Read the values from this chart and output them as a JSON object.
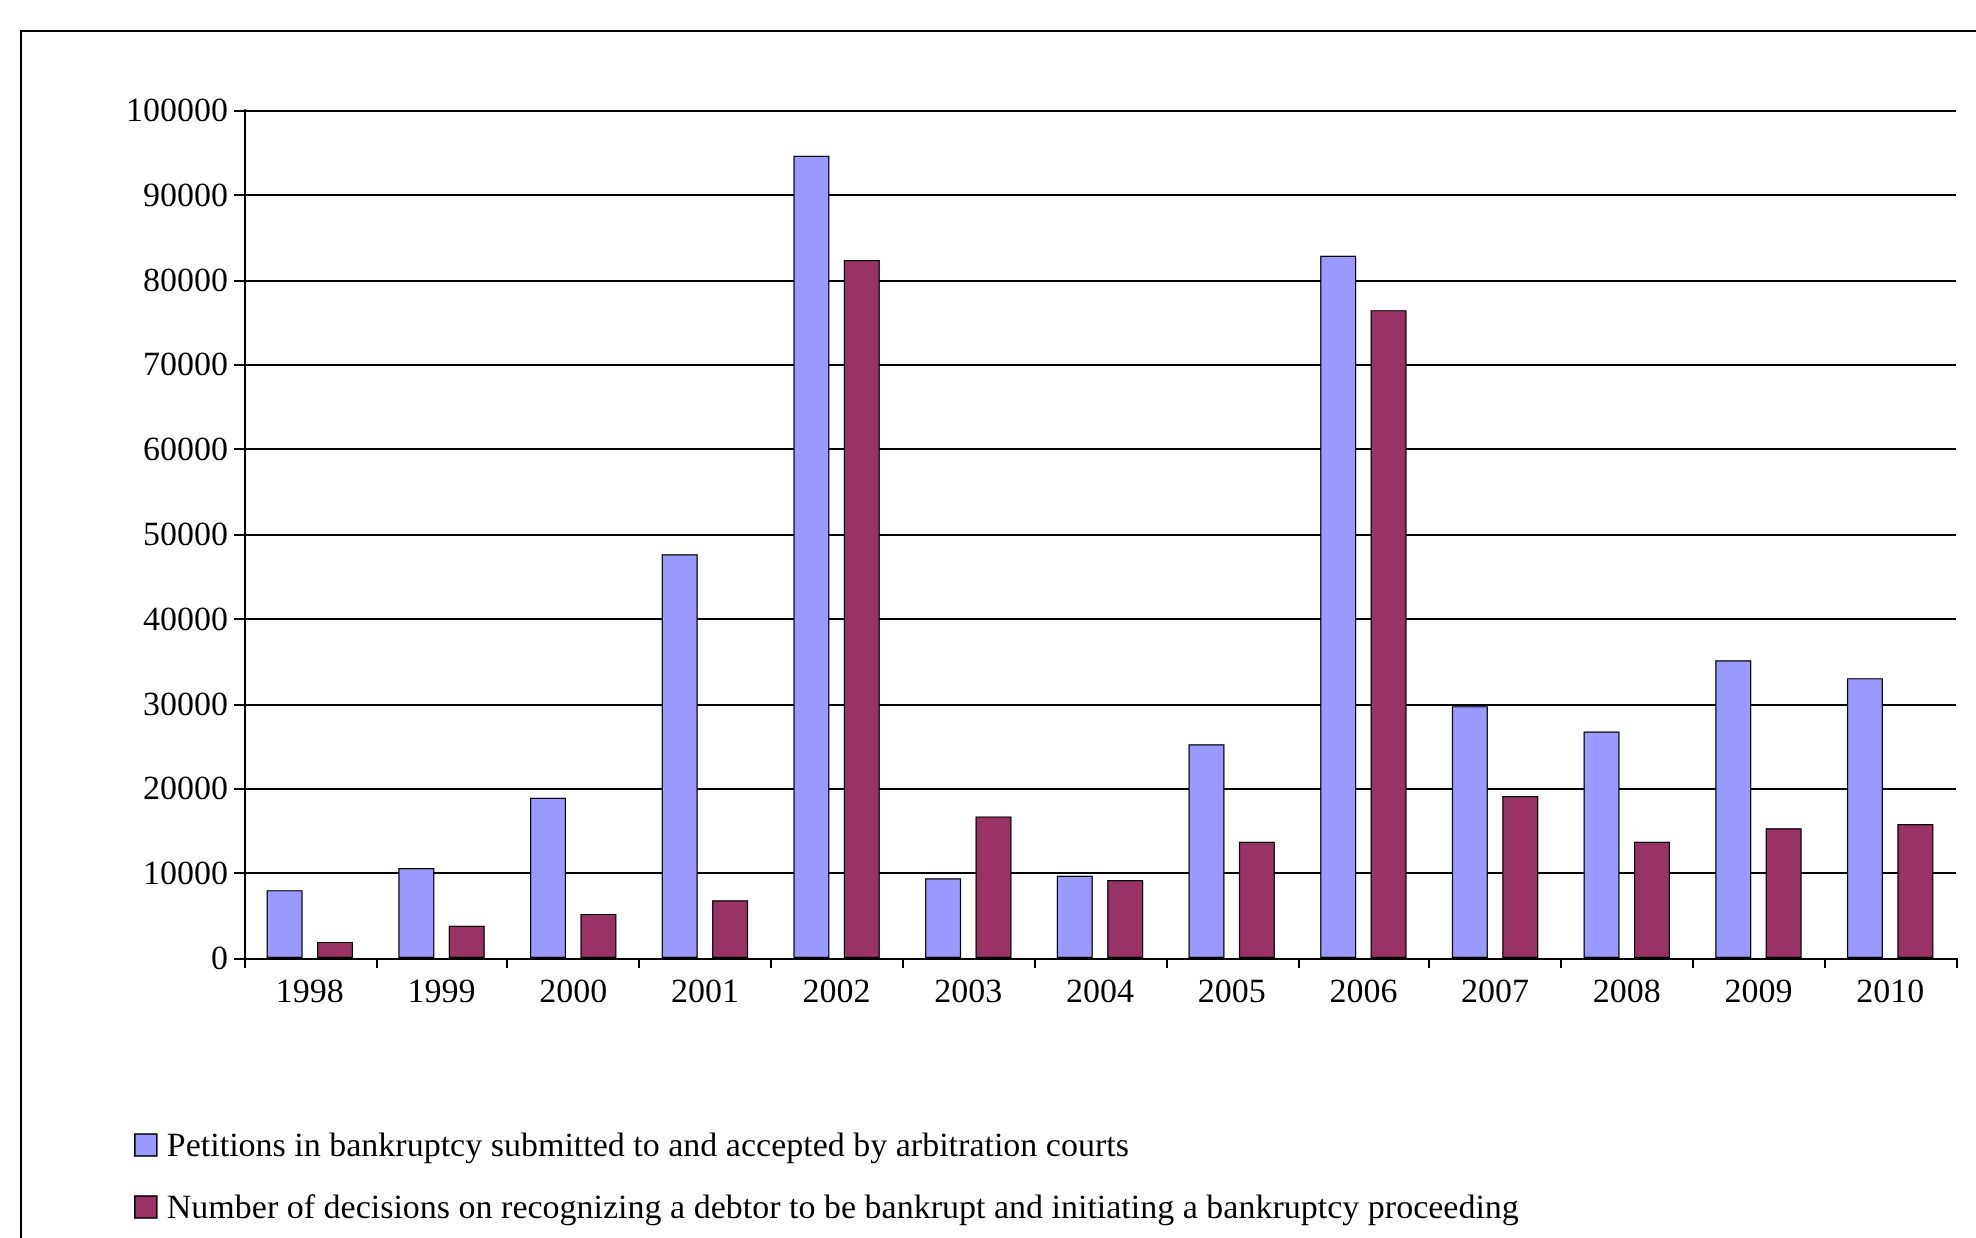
{
  "chart_data": {
    "type": "bar",
    "categories": [
      "1998",
      "1999",
      "2000",
      "2001",
      "2002",
      "2003",
      "2004",
      "2005",
      "2006",
      "2007",
      "2008",
      "2009",
      "2010"
    ],
    "series": [
      {
        "name": "Petitions in bankruptcy submitted to and accepted by arbitration courts",
        "color": "#9999ff",
        "values": [
          8000,
          10600,
          18900,
          47600,
          94600,
          9400,
          9700,
          25200,
          82800,
          29700,
          26700,
          35100,
          33000
        ]
      },
      {
        "name": "Number of decisions on recognizing a debtor to be bankrupt and initiating a bankruptcy proceeding",
        "color": "#993366",
        "values": [
          1900,
          3800,
          5200,
          6800,
          82300,
          16700,
          9200,
          13700,
          76400,
          19100,
          13700,
          15300,
          15800
        ]
      }
    ],
    "ylim": [
      0,
      100000
    ],
    "yticks": [
      0,
      10000,
      20000,
      30000,
      40000,
      50000,
      60000,
      70000,
      80000,
      90000,
      100000
    ],
    "grid": "y",
    "legend": "bottom left"
  }
}
